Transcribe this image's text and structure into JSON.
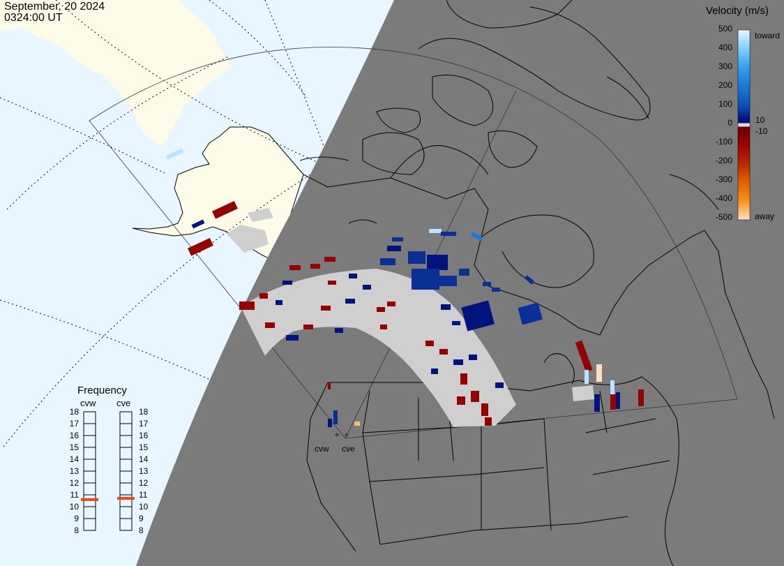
{
  "header": {
    "date": "September, 20 2024",
    "time": "0324:00 UT"
  },
  "velocity_scale": {
    "title": "Velocity (m/s)",
    "ticks": [
      "500",
      "400",
      "300",
      "200",
      "100",
      "0",
      "-100",
      "-200",
      "-300",
      "-400",
      "-500"
    ],
    "toward_label": "toward",
    "away_label": "away",
    "small_pos": "10",
    "small_neg": "-10",
    "colors": {
      "toward": [
        "#c8ecff",
        "#5ec2f5",
        "#2ea0ee",
        "#1a78d6",
        "#0d50b2",
        "#0a2f96",
        "#02137e"
      ],
      "away": [
        "#6e0000",
        "#960000",
        "#b82800",
        "#d04600",
        "#e56a00",
        "#f59218",
        "#ffbc70",
        "#ffe0c2"
      ],
      "ground_scatter": "#c8c8c8"
    }
  },
  "frequency": {
    "title": "Frequency",
    "radars": [
      "cvw",
      "cve"
    ],
    "ticks": [
      "18",
      "17",
      "16",
      "15",
      "14",
      "13",
      "12",
      "11",
      "10",
      "9",
      "8"
    ],
    "cvw_value_mhz": 10.6,
    "cve_value_mhz": 10.7,
    "marker_color": "#e8481a"
  },
  "radar_sites": {
    "cvw": "cvw",
    "cve": "cve"
  },
  "colors": {
    "night": "#7b7b7b",
    "ocean_day": "#e8f6ff",
    "land_day": "#fbfbe8",
    "scatter_bg": "#cfcfcf"
  }
}
